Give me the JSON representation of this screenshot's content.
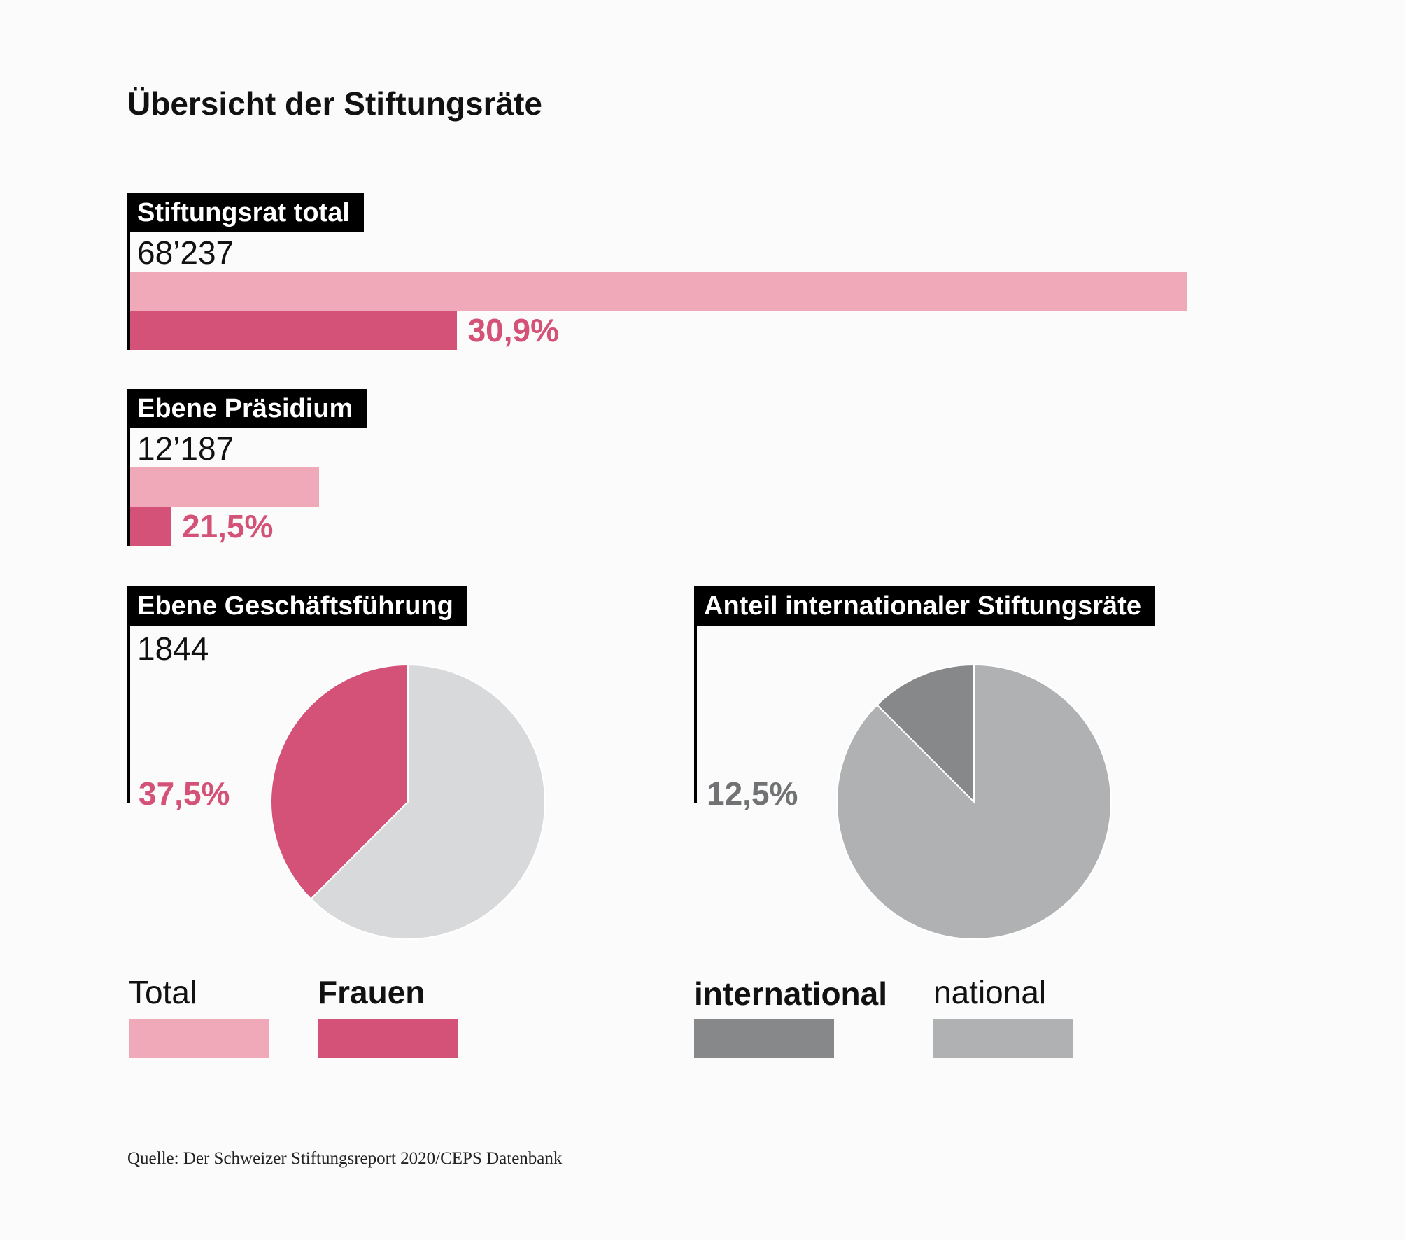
{
  "title": "Übersicht der Stiftungsräte",
  "colors": {
    "total": "#efa9b8",
    "frauen": "#d45277",
    "international": "#87888a",
    "national": "#b0b1b3",
    "pie_rest": "#d8d9db"
  },
  "chart_data": [
    {
      "type": "bar",
      "title": "Stiftungsrat total",
      "total_label": "68’237",
      "total": 68237,
      "frauen_share_label": "30,9%",
      "frauen_share": 30.9
    },
    {
      "type": "bar",
      "title": "Ebene Präsidium",
      "total_label": "12’187",
      "total": 12187,
      "frauen_share_label": "21,5%",
      "frauen_share": 21.5
    },
    {
      "type": "pie",
      "title": "Ebene Geschäftsführung",
      "total_label": "1844",
      "total": 1844,
      "share_label": "37,5%",
      "share": 37.5
    },
    {
      "type": "pie",
      "title": "Anteil internationaler Stiftungsräte",
      "share_label": "12,5%",
      "share": 12.5
    }
  ],
  "legend": {
    "total": "Total",
    "frauen": "Frauen",
    "international": "international",
    "national": "national"
  },
  "source": "Quelle: Der Schweizer Stiftungsreport 2020/CEPS Datenbank"
}
